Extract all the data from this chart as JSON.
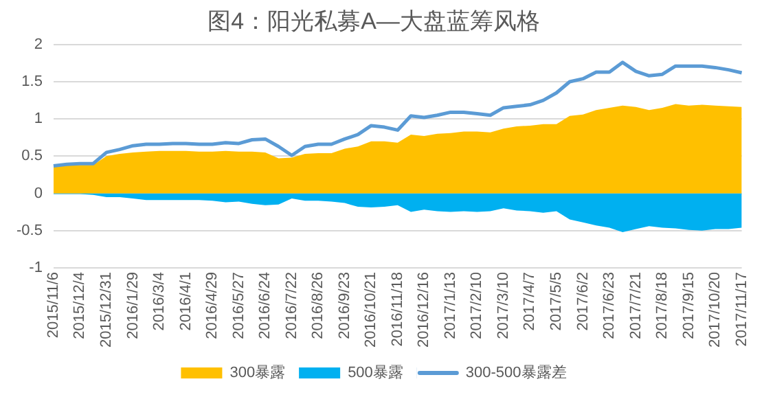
{
  "chart_data": {
    "type": "area",
    "title": "图4：阳光私募A—大盘蓝筹风格",
    "categories": [
      "2015/11/6",
      null,
      "2015/12/4",
      null,
      "2015/12/31",
      null,
      "2016/1/29",
      null,
      "2016/3/4",
      null,
      "2016/4/1",
      null,
      "2016/4/29",
      null,
      "2016/5/27",
      null,
      "2016/6/24",
      null,
      "2016/7/22",
      null,
      "2016/8/26",
      null,
      "2016/9/23",
      null,
      "2016/10/21",
      null,
      "2016/11/18",
      null,
      "2016/12/16",
      null,
      "2017/1/13",
      null,
      "2017/2/10",
      null,
      "2017/3/10",
      null,
      "2017/4/7",
      null,
      "2017/5/5",
      null,
      "2017/6/2",
      null,
      "2017/6/23",
      null,
      "2017/7/21",
      null,
      "2017/8/18",
      null,
      "2017/9/15",
      null,
      "2017/10/20",
      null,
      "2017/11/17"
    ],
    "series": [
      {
        "name": "300暴露",
        "color": "#ffc000",
        "values": [
          0.36,
          0.38,
          0.38,
          0.38,
          0.5,
          0.53,
          0.55,
          0.56,
          0.57,
          0.57,
          0.57,
          0.56,
          0.56,
          0.57,
          0.56,
          0.56,
          0.55,
          0.47,
          0.48,
          0.53,
          0.54,
          0.54,
          0.6,
          0.63,
          0.7,
          0.7,
          0.68,
          0.79,
          0.77,
          0.8,
          0.81,
          0.83,
          0.83,
          0.82,
          0.87,
          0.9,
          0.91,
          0.93,
          0.93,
          1.04,
          1.06,
          1.12,
          1.15,
          1.18,
          1.16,
          1.12,
          1.15,
          1.2,
          1.18,
          1.19,
          1.18,
          1.17,
          1.16
        ]
      },
      {
        "name": "500暴露",
        "color": "#00b0f0",
        "values": [
          -0.01,
          -0.01,
          -0.01,
          -0.02,
          -0.05,
          -0.05,
          -0.07,
          -0.09,
          -0.09,
          -0.09,
          -0.09,
          -0.09,
          -0.1,
          -0.12,
          -0.11,
          -0.14,
          -0.16,
          -0.15,
          -0.07,
          -0.1,
          -0.1,
          -0.11,
          -0.13,
          -0.18,
          -0.19,
          -0.18,
          -0.16,
          -0.25,
          -0.22,
          -0.24,
          -0.25,
          -0.24,
          -0.25,
          -0.24,
          -0.2,
          -0.23,
          -0.24,
          -0.26,
          -0.24,
          -0.35,
          -0.39,
          -0.43,
          -0.46,
          -0.52,
          -0.48,
          -0.44,
          -0.46,
          -0.47,
          -0.49,
          -0.5,
          -0.48,
          -0.48,
          -0.46
        ]
      },
      {
        "name": "300-500暴露差",
        "color": "#5b9bd5",
        "type": "line",
        "values": [
          0.37,
          0.39,
          0.4,
          0.4,
          0.55,
          0.59,
          0.64,
          0.66,
          0.66,
          0.67,
          0.67,
          0.66,
          0.66,
          0.68,
          0.67,
          0.72,
          0.73,
          0.63,
          0.51,
          0.63,
          0.66,
          0.66,
          0.73,
          0.79,
          0.91,
          0.89,
          0.85,
          1.04,
          1.02,
          1.05,
          1.09,
          1.09,
          1.07,
          1.05,
          1.15,
          1.17,
          1.19,
          1.25,
          1.35,
          1.5,
          1.54,
          1.63,
          1.63,
          1.76,
          1.64,
          1.58,
          1.6,
          1.71,
          1.71,
          1.71,
          1.69,
          1.66,
          1.62
        ]
      }
    ],
    "ylim": [
      -1,
      2
    ],
    "yticks": [
      -1,
      -0.5,
      0,
      0.5,
      1,
      1.5,
      2
    ],
    "grid": "y",
    "legend": "bottom",
    "marker": "none"
  }
}
